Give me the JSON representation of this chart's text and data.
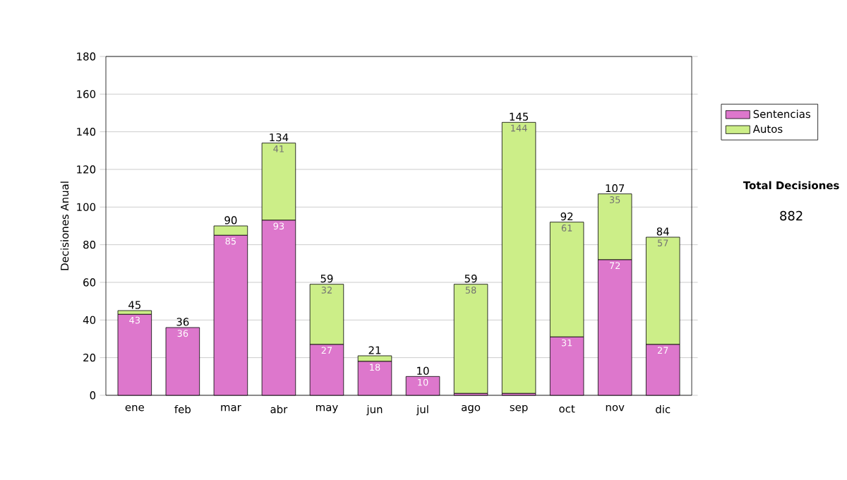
{
  "chart_data": {
    "type": "bar",
    "stacked": true,
    "ylabel": "Decisiones Anual",
    "categories": [
      "ene",
      "feb",
      "mar",
      "abr",
      "may",
      "jun",
      "jul",
      "ago",
      "sep",
      "oct",
      "nov",
      "dic"
    ],
    "series": [
      {
        "name": "Sentencias",
        "color": "#dd77cc",
        "values": [
          43,
          36,
          85,
          93,
          27,
          18,
          10,
          1,
          1,
          31,
          72,
          27
        ],
        "value_labels": [
          "43",
          "36",
          "85",
          "93",
          "27",
          "18",
          "10",
          null,
          null,
          "31",
          "72",
          "27"
        ]
      },
      {
        "name": "Autos",
        "color": "#ccee88",
        "values": [
          2,
          0,
          5,
          41,
          32,
          3,
          0,
          58,
          144,
          61,
          35,
          57
        ],
        "value_labels": [
          null,
          null,
          null,
          "41",
          "32",
          null,
          null,
          "58",
          "144",
          "61",
          "35",
          "57"
        ]
      }
    ],
    "totals": [
      "45",
      "36",
      "90",
      "134",
      "59",
      "21",
      "10",
      "59",
      "145",
      "92",
      "107",
      "84"
    ],
    "ylim": [
      0,
      180
    ],
    "yticks": [
      0,
      20,
      40,
      60,
      80,
      100,
      120,
      140,
      160,
      180
    ],
    "grid": "y",
    "legend": "right",
    "annotations": [
      "Total Decisiones",
      "882"
    ]
  }
}
